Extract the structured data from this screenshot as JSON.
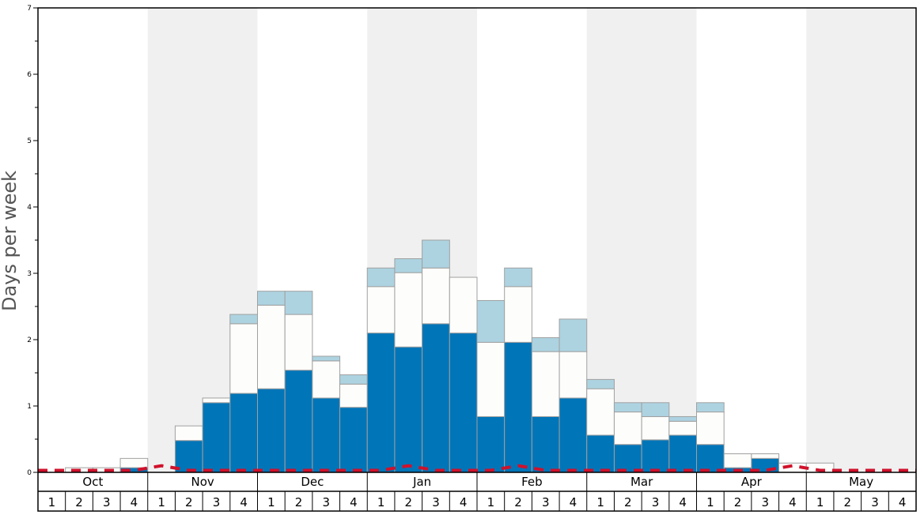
{
  "chart_data": {
    "type": "bar",
    "stacked": true,
    "title": "",
    "ylabel": "Days per week",
    "xlabel": "",
    "ylim": [
      0,
      7
    ],
    "y_ticks": [
      0,
      1,
      2,
      3,
      4,
      5,
      6,
      7
    ],
    "grid": false,
    "months": [
      "Oct",
      "Nov",
      "Dec",
      "Jan",
      "Feb",
      "Mar",
      "Apr",
      "May"
    ],
    "weeks": [
      "1",
      "2",
      "3",
      "4"
    ],
    "categories": [
      "Oct 1",
      "Oct 2",
      "Oct 3",
      "Oct 4",
      "Nov 1",
      "Nov 2",
      "Nov 3",
      "Nov 4",
      "Dec 1",
      "Dec 2",
      "Dec 3",
      "Dec 4",
      "Jan 1",
      "Jan 2",
      "Jan 3",
      "Jan 4",
      "Feb 1",
      "Feb 2",
      "Feb 3",
      "Feb 4",
      "Mar 1",
      "Mar 2",
      "Mar 3",
      "Mar 4",
      "Apr 1",
      "Apr 2",
      "Apr 3",
      "Apr 4",
      "May 1",
      "May 2",
      "May 3",
      "May 4"
    ],
    "series": [
      {
        "color": "#0075b8",
        "values": [
          0,
          0,
          0,
          0.07,
          0,
          0.48,
          1.05,
          1.19,
          1.26,
          1.54,
          1.12,
          0.98,
          2.1,
          1.89,
          2.24,
          2.1,
          0.84,
          1.96,
          0.84,
          1.12,
          0.56,
          0.42,
          0.49,
          0.56,
          0.42,
          0.07,
          0.21,
          0,
          0,
          0,
          0,
          0
        ]
      },
      {
        "color": "#fdfdfb",
        "values": [
          0,
          0.07,
          0.07,
          0.14,
          0,
          0.22,
          0.07,
          1.05,
          1.26,
          0.84,
          0.56,
          0.35,
          0.7,
          1.12,
          0.84,
          0.84,
          1.12,
          0.84,
          0.98,
          0.7,
          0.7,
          0.49,
          0.35,
          0.21,
          0.49,
          0.21,
          0.07,
          0.14,
          0.14,
          0,
          0,
          0
        ]
      },
      {
        "color": "#add3e1",
        "values": [
          0,
          0,
          0,
          0,
          0,
          0,
          0,
          0.14,
          0.21,
          0.35,
          0.07,
          0.14,
          0.28,
          0.21,
          0.42,
          0,
          0.63,
          0.28,
          0.21,
          0.49,
          0.14,
          0.14,
          0.21,
          0.07,
          0.14,
          0,
          0,
          0,
          0,
          0,
          0,
          0
        ]
      }
    ],
    "average_line": {
      "style": "dashed",
      "color": "#d0112b",
      "values": [
        0.03,
        0.03,
        0.03,
        0.03,
        0.1,
        0.03,
        0.03,
        0.03,
        0.03,
        0.03,
        0.03,
        0.03,
        0.03,
        0.1,
        0.03,
        0.03,
        0.03,
        0.1,
        0.03,
        0.03,
        0.03,
        0.03,
        0.03,
        0.03,
        0.03,
        0.03,
        0.03,
        0.1,
        0.03,
        0.03,
        0.03,
        0.03
      ]
    },
    "colors": {
      "band_shade": "#f0f0f0",
      "bar_outline": "#a0a0a0",
      "axis": "#000000",
      "ylabel_color": "#555555"
    }
  }
}
